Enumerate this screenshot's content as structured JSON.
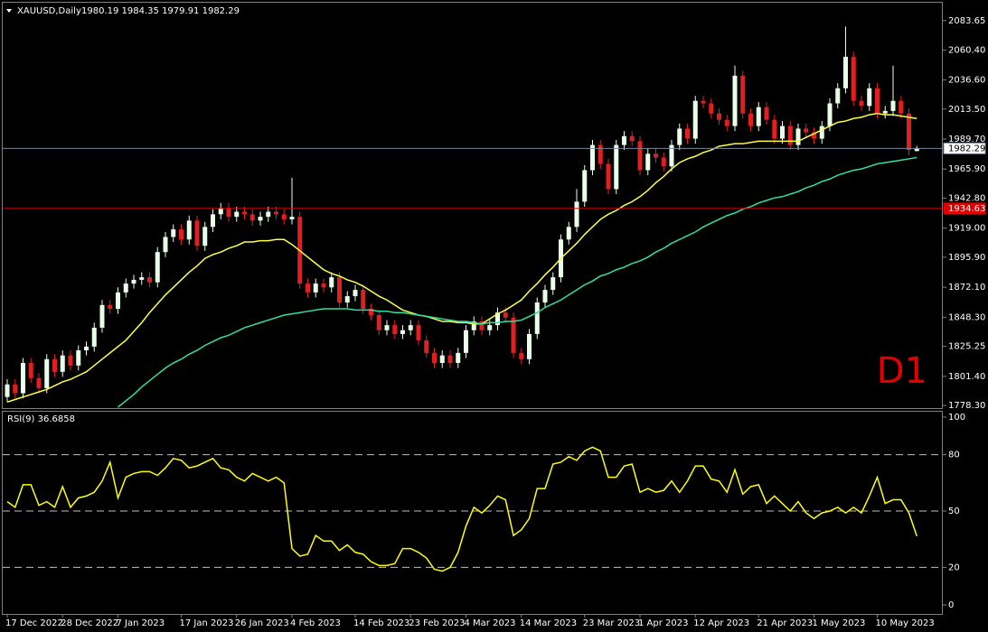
{
  "chart_data": [
    {
      "type": "candlestick",
      "title": "XAUUSD,Daily",
      "subtitle": "1980.19 1984.35 1979.91 1982.29",
      "annotation": "D1",
      "up_color": "#e8ffe8",
      "down_color": "#e02020",
      "open": [
        1785,
        1795,
        1788,
        1812,
        1800,
        1792,
        1815,
        1805,
        1818,
        1810,
        1822,
        1825,
        1840,
        1858,
        1855,
        1868,
        1875,
        1878,
        1880,
        1876,
        1900,
        1912,
        1918,
        1910,
        1925,
        1905,
        1920,
        1930,
        1935,
        1928,
        1932,
        1930,
        1925,
        1928,
        1932,
        1930,
        1926,
        1928,
        1875,
        1868,
        1875,
        1872,
        1880,
        1860,
        1865,
        1870,
        1855,
        1850,
        1838,
        1842,
        1835,
        1838,
        1842,
        1830,
        1820,
        1812,
        1818,
        1812,
        1820,
        1838,
        1845,
        1838,
        1842,
        1852,
        1848,
        1820,
        1815,
        1835,
        1860,
        1870,
        1880,
        1910,
        1920,
        1940,
        1965,
        1985,
        1970,
        1950,
        1985,
        1992,
        1988,
        1965,
        1978,
        1975,
        1968,
        1985,
        1998,
        1990,
        2020,
        2018,
        2010,
        2005,
        2000,
        2040,
        2010,
        2000,
        2015,
        2005,
        1990,
        2000,
        1985,
        1998,
        1995,
        1990,
        2000,
        2018,
        2030,
        2055,
        2020,
        2016,
        2030,
        2010,
        2012,
        2020,
        2010,
        1980.19
      ],
      "high": [
        1799,
        1799,
        1816,
        1816,
        1804,
        1819,
        1819,
        1822,
        1822,
        1826,
        1829,
        1844,
        1862,
        1862,
        1872,
        1879,
        1882,
        1884,
        1884,
        1904,
        1916,
        1922,
        1922,
        1929,
        1929,
        1924,
        1934,
        1939,
        1939,
        1936,
        1936,
        1934,
        1932,
        1936,
        1936,
        1934,
        1959,
        1932,
        1879,
        1879,
        1879,
        1884,
        1884,
        1869,
        1874,
        1874,
        1859,
        1854,
        1846,
        1846,
        1842,
        1846,
        1846,
        1834,
        1824,
        1822,
        1822,
        1824,
        1842,
        1849,
        1849,
        1846,
        1856,
        1856,
        1852,
        1824,
        1839,
        1864,
        1874,
        1884,
        1914,
        1924,
        1950,
        1969,
        1989,
        1989,
        1974,
        1989,
        1996,
        1996,
        1992,
        1982,
        1982,
        1979,
        1989,
        2002,
        2002,
        2024,
        2024,
        2022,
        2014,
        2009,
        2048,
        2044,
        2014,
        2019,
        2019,
        2009,
        2004,
        2004,
        2002,
        2002,
        1999,
        2004,
        2022,
        2034,
        2079,
        2059,
        2024,
        2034,
        2034,
        2016,
        2048,
        2024,
        2014,
        1984.35
      ],
      "low": [
        1781,
        1784,
        1784,
        1796,
        1788,
        1788,
        1801,
        1801,
        1806,
        1806,
        1818,
        1821,
        1836,
        1851,
        1851,
        1864,
        1871,
        1874,
        1872,
        1872,
        1896,
        1908,
        1906,
        1906,
        1901,
        1901,
        1916,
        1926,
        1924,
        1924,
        1926,
        1921,
        1921,
        1924,
        1926,
        1922,
        1922,
        1871,
        1864,
        1864,
        1868,
        1868,
        1856,
        1856,
        1861,
        1851,
        1846,
        1834,
        1834,
        1831,
        1831,
        1834,
        1826,
        1816,
        1808,
        1808,
        1808,
        1808,
        1816,
        1834,
        1834,
        1834,
        1838,
        1844,
        1816,
        1811,
        1811,
        1831,
        1856,
        1866,
        1876,
        1906,
        1916,
        1936,
        1961,
        1966,
        1946,
        1946,
        1981,
        1984,
        1961,
        1961,
        1971,
        1964,
        1964,
        1981,
        1986,
        1986,
        2014,
        2006,
        2001,
        1996,
        1996,
        2006,
        1996,
        1996,
        2001,
        1986,
        1986,
        1981,
        1981,
        1991,
        1986,
        1986,
        1996,
        2014,
        2026,
        2016,
        2012,
        2012,
        2006,
        2006,
        2008,
        2006,
        1977,
        1979.91
      ],
      "close": [
        1795,
        1788,
        1812,
        1800,
        1792,
        1815,
        1805,
        1818,
        1810,
        1822,
        1825,
        1840,
        1858,
        1855,
        1868,
        1875,
        1878,
        1880,
        1876,
        1900,
        1912,
        1918,
        1910,
        1925,
        1905,
        1920,
        1930,
        1935,
        1928,
        1932,
        1930,
        1925,
        1928,
        1932,
        1930,
        1926,
        1928,
        1875,
        1868,
        1875,
        1872,
        1880,
        1860,
        1865,
        1870,
        1855,
        1850,
        1838,
        1842,
        1835,
        1838,
        1842,
        1830,
        1820,
        1812,
        1818,
        1812,
        1820,
        1838,
        1845,
        1838,
        1842,
        1852,
        1848,
        1820,
        1815,
        1835,
        1860,
        1870,
        1880,
        1910,
        1920,
        1940,
        1965,
        1985,
        1970,
        1950,
        1985,
        1992,
        1988,
        1965,
        1978,
        1975,
        1968,
        1985,
        1998,
        1990,
        2020,
        2018,
        2010,
        2005,
        2000,
        2040,
        2010,
        2000,
        2015,
        2005,
        1990,
        2000,
        1985,
        1998,
        1995,
        1990,
        2000,
        2018,
        2030,
        2055,
        2020,
        2016,
        2030,
        2010,
        2012,
        2020,
        2010,
        1981,
        1982.29
      ],
      "series": [
        {
          "color": "#ffff40",
          "values": [
            1781,
            1783,
            1785,
            1787,
            1789,
            1791,
            1794,
            1797,
            1799,
            1802,
            1805,
            1810,
            1815,
            1820,
            1825,
            1830,
            1837,
            1844,
            1852,
            1859,
            1866,
            1872,
            1878,
            1884,
            1889,
            1895,
            1898,
            1900,
            1903,
            1905,
            1908,
            1908,
            1909,
            1909,
            1910,
            1910,
            1906,
            1901,
            1896,
            1891,
            1886,
            1883,
            1881,
            1878,
            1876,
            1873,
            1869,
            1865,
            1862,
            1858,
            1854,
            1852,
            1850,
            1849,
            1847,
            1845,
            1845,
            1844,
            1844,
            1843,
            1843,
            1847,
            1851,
            1854,
            1858,
            1862,
            1869,
            1875,
            1882,
            1888,
            1895,
            1901,
            1907,
            1914,
            1920,
            1926,
            1930,
            1933,
            1937,
            1940,
            1944,
            1949,
            1955,
            1960,
            1966,
            1971,
            1974,
            1976,
            1979,
            1981,
            1984,
            1985,
            1986,
            1986,
            1987,
            1988,
            1988,
            1988,
            1988,
            1988,
            1988,
            1991,
            1994,
            1997,
            2000,
            2003,
            2004,
            2006,
            2007,
            2009,
            2010,
            2009,
            2009,
            2008,
            2007,
            2006
          ]
        },
        {
          "color": "#30e0a0",
          "values": [
            null,
            null,
            null,
            null,
            null,
            null,
            null,
            null,
            null,
            null,
            null,
            null,
            null,
            null,
            1777,
            1782,
            1787,
            1793,
            1798,
            1803,
            1808,
            1812,
            1815,
            1819,
            1822,
            1826,
            1829,
            1832,
            1834,
            1837,
            1840,
            1842,
            1844,
            1846,
            1848,
            1850,
            1851,
            1852,
            1853,
            1854,
            1855,
            1855,
            1855,
            1855,
            1854,
            1854,
            1854,
            1853,
            1853,
            1852,
            1852,
            1851,
            1850,
            1849,
            1848,
            1847,
            1846,
            1845,
            1845,
            1844,
            1843,
            1844,
            1844,
            1845,
            1845,
            1846,
            1849,
            1852,
            1856,
            1859,
            1862,
            1866,
            1870,
            1874,
            1877,
            1881,
            1883,
            1886,
            1888,
            1891,
            1893,
            1896,
            1900,
            1903,
            1907,
            1910,
            1913,
            1916,
            1920,
            1923,
            1926,
            1929,
            1931,
            1934,
            1936,
            1939,
            1941,
            1943,
            1944,
            1946,
            1948,
            1951,
            1953,
            1956,
            1958,
            1961,
            1963,
            1965,
            1966,
            1968,
            1970,
            1971,
            1972,
            1973,
            1974,
            1975
          ]
        }
      ],
      "hlines": [
        {
          "value": 1934.63,
          "label": "1934.63",
          "color": "#e00000"
        },
        {
          "value": 1982.29,
          "label": "1982.29",
          "color": "#778899"
        }
      ],
      "ylim": [
        1776.2,
        2097.9
      ],
      "yticks": [
        2083.65,
        {
          "value": 2060.4,
          "label": "2060.40"
        },
        {
          "value": 2036.6,
          "label": "2036.60"
        },
        {
          "value": 2013.5,
          "label": "2013.50"
        },
        {
          "value": 1989.7,
          "label": "1989.70"
        },
        {
          "value": 1965.9,
          "label": "1965.90"
        },
        {
          "value": 1942.8,
          "label": "1942.80"
        },
        {
          "value": 1919,
          "label": "1919.00"
        },
        {
          "value": 1895.9,
          "label": "1895.90"
        },
        {
          "value": 1872.1,
          "label": "1872.10"
        },
        {
          "value": 1848.3,
          "label": "1848.30"
        },
        1825.25,
        {
          "value": 1801.4,
          "label": "1801.40"
        },
        {
          "value": 1778.3,
          "label": "1778.30"
        }
      ]
    },
    {
      "type": "line",
      "title": "RSI(9) 36.6858",
      "categories": [
        "17 Dec 2022",
        null,
        null,
        null,
        null,
        null,
        null,
        "28 Dec 2022",
        null,
        null,
        null,
        null,
        null,
        null,
        "7 Jan 2023",
        null,
        null,
        null,
        null,
        null,
        null,
        null,
        "17 Jan 2023",
        null,
        null,
        null,
        null,
        null,
        null,
        "26 Jan 2023",
        null,
        null,
        null,
        null,
        null,
        null,
        "4 Feb 2023",
        null,
        null,
        null,
        null,
        null,
        null,
        null,
        "14 Feb 2023",
        null,
        null,
        null,
        null,
        null,
        null,
        "23 Feb 2023",
        null,
        null,
        null,
        null,
        null,
        null,
        "4 Mar 2023",
        null,
        null,
        null,
        null,
        null,
        null,
        "14 Mar 2023",
        null,
        null,
        null,
        null,
        null,
        null,
        null,
        "23 Mar 2023",
        null,
        null,
        null,
        null,
        null,
        null,
        "1 Apr 2023",
        null,
        null,
        null,
        null,
        null,
        null,
        "12 Apr 2023",
        null,
        null,
        null,
        null,
        null,
        null,
        null,
        "21 Apr 2023",
        null,
        null,
        null,
        null,
        null,
        null,
        "1 May 2023",
        null,
        null,
        null,
        null,
        null,
        null,
        null,
        "10 May 2023",
        null,
        null,
        null,
        null,
        null
      ],
      "series": [
        {
          "color": "#ffff00",
          "values": [
            55,
            52,
            64,
            64,
            53,
            55,
            52,
            63,
            52,
            57,
            58,
            60,
            66,
            76,
            57,
            68,
            70,
            71,
            71,
            69,
            73,
            78,
            77,
            73,
            74,
            76,
            78,
            73,
            72,
            68,
            66,
            70,
            68,
            66,
            68,
            65,
            30,
            26,
            27,
            37,
            34,
            34,
            29,
            32,
            28,
            27,
            23,
            21,
            21,
            22,
            30,
            30,
            28,
            25,
            19,
            18,
            20,
            28,
            42,
            52,
            49,
            53,
            58,
            56,
            37,
            40,
            46,
            62,
            62,
            75,
            76,
            79,
            77,
            82,
            84,
            82,
            68,
            68,
            74,
            75,
            60,
            62,
            60,
            61,
            66,
            60,
            66,
            74,
            74,
            67,
            66,
            60,
            72,
            59,
            63,
            64,
            54,
            58,
            54,
            50,
            55,
            49,
            46,
            49,
            50,
            52,
            49,
            52,
            49,
            58,
            68,
            54,
            56,
            56,
            49,
            36.6858
          ]
        }
      ],
      "levels": [
        80,
        50,
        20
      ],
      "ylim": [
        -4.8,
        102.9
      ],
      "yticks": [
        100,
        80,
        50,
        20,
        0
      ]
    }
  ]
}
